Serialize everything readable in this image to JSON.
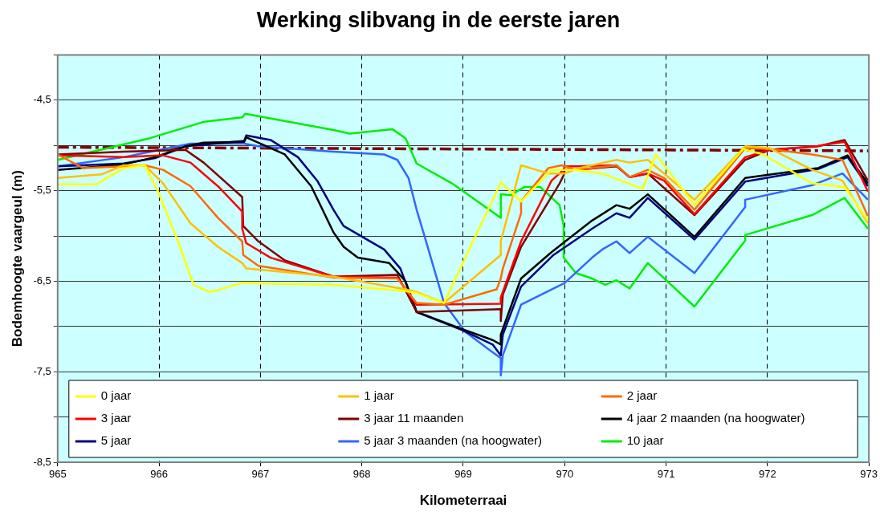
{
  "chart_data": {
    "type": "line",
    "title": "Werking slibvang in de eerste jaren",
    "xlabel": "Kilometerraai",
    "ylabel": "Bodemhoogte vaargeul (m)",
    "xlim": [
      965,
      973
    ],
    "xticks": [
      965,
      966,
      967,
      968,
      969,
      970,
      971,
      972,
      973
    ],
    "ylim": [
      -8.5,
      -4.0
    ],
    "yticks": [
      {
        "value": -8.5,
        "label": "-8,5"
      },
      {
        "value": -8,
        "label": null
      },
      {
        "value": -7.5,
        "label": "-7,5"
      },
      {
        "value": -7,
        "label": null
      },
      {
        "value": -6.5,
        "label": "-6,5"
      },
      {
        "value": -6,
        "label": null
      },
      {
        "value": -5.5,
        "label": "-5,5"
      },
      {
        "value": -5,
        "label": null
      },
      {
        "value": -4.5,
        "label": "-4,5"
      },
      {
        "value": -4,
        "label": null
      }
    ],
    "grid": true,
    "legend": "bottom",
    "marker": "none",
    "line_style": "solid",
    "series": [
      {
        "name": "0 jaar",
        "color": "#ffff00",
        "x": [
          965,
          965.38,
          965.65,
          965.86,
          965.99,
          966.18,
          966.34,
          966.5,
          966.82,
          967.72,
          968.43,
          968.54,
          968.81,
          969.37,
          969.47,
          969.57,
          969.87,
          970.1,
          970.37,
          970.77,
          970.9,
          971.28,
          971.76,
          971.96,
          972.44,
          972.76,
          972.99
        ],
        "values": [
          -5.43,
          -5.43,
          -5.25,
          -5.22,
          -5.51,
          -6.04,
          -6.54,
          -6.62,
          -6.52,
          -6.54,
          -6.61,
          -6.63,
          -6.74,
          -5.41,
          -5.51,
          -5.62,
          -5.27,
          -5.27,
          -5.31,
          -5.48,
          -5.1,
          -5.66,
          -5.04,
          -5.1,
          -5.42,
          -5.46,
          -5.83
        ]
      },
      {
        "name": "1 jaar",
        "color": "#ffc000",
        "x": [
          965,
          965.43,
          965.65,
          965.86,
          966.04,
          966.31,
          966.58,
          966.82,
          966.86,
          967.72,
          968.43,
          968.54,
          968.81,
          969.37,
          969.37,
          969.57,
          969.84,
          970.0,
          970.11,
          970.51,
          970.64,
          970.82,
          970.98,
          971.28,
          971.78,
          972.02,
          972.44,
          972.74,
          972.99
        ],
        "values": [
          -5.36,
          -5.32,
          -5.22,
          -5.22,
          -5.42,
          -5.86,
          -6.12,
          -6.3,
          -6.36,
          -6.45,
          -6.59,
          -6.62,
          -6.74,
          -6.21,
          -6.06,
          -5.22,
          -5.31,
          -5.31,
          -5.26,
          -5.16,
          -5.19,
          -5.16,
          -5.31,
          -5.6,
          -5.01,
          -5.03,
          -5.27,
          -5.39,
          -5.86
        ]
      },
      {
        "name": "2 jaar",
        "color": "#ff6a00",
        "x": [
          965,
          965.25,
          965.86,
          966.04,
          966.31,
          966.58,
          966.82,
          966.83,
          966.98,
          967.72,
          968.35,
          968.54,
          968.81,
          969.33,
          969.37,
          969.39,
          969.57,
          969.57,
          969.84,
          969.97,
          970.11,
          970.51,
          970.64,
          970.82,
          970.98,
          971.28,
          971.78,
          972.02,
          972.44,
          972.74,
          972.99
        ],
        "values": [
          -5.1,
          -5.25,
          -5.22,
          -5.27,
          -5.45,
          -5.8,
          -6.06,
          -6.21,
          -6.33,
          -6.46,
          -6.47,
          -6.74,
          -6.76,
          -6.59,
          -6.47,
          -6.36,
          -5.75,
          -5.62,
          -5.25,
          -5.22,
          -5.27,
          -5.22,
          -5.35,
          -5.27,
          -5.36,
          -5.71,
          -5.03,
          -5.04,
          -5.1,
          -5.16,
          -5.78
        ]
      },
      {
        "name": "3 jaar",
        "color": "#ff0000",
        "x": [
          965,
          965.65,
          966.04,
          966.31,
          966.58,
          966.82,
          966.82,
          966.86,
          967.1,
          967.72,
          968.35,
          968.54,
          969.37,
          969.37,
          969.57,
          969.87,
          969.99,
          970.0,
          970.11,
          970.51,
          970.64,
          970.82,
          970.98,
          971.28,
          971.78,
          972.02,
          972.47,
          972.76,
          972.99
        ],
        "values": [
          -5.11,
          -5.13,
          -5.11,
          -5.19,
          -5.45,
          -5.73,
          -5.92,
          -6.08,
          -6.24,
          -6.45,
          -6.46,
          -6.76,
          -6.75,
          -6.68,
          -6.06,
          -5.39,
          -5.27,
          -5.23,
          -5.23,
          -5.22,
          -5.35,
          -5.31,
          -5.39,
          -5.76,
          -5.13,
          -5.05,
          -5.01,
          -4.96,
          -5.51
        ]
      },
      {
        "name": "3 jaar 11 maanden",
        "color": "#800000",
        "x": [
          965,
          965.65,
          966.26,
          966.44,
          966.82,
          966.83,
          966.98,
          967.24,
          967.72,
          968.35,
          968.54,
          969.37,
          969.37,
          969.39,
          969.57,
          969.95,
          969.99,
          970.0,
          970.11,
          970.51,
          970.64,
          970.82,
          971.28,
          971.78,
          972.02,
          972.5,
          972.76,
          972.99
        ],
        "values": [
          -5.1,
          -5.07,
          -5.05,
          -5.19,
          -5.57,
          -5.89,
          -6.06,
          -6.27,
          -6.45,
          -6.43,
          -6.84,
          -6.81,
          -6.94,
          -6.65,
          -6.12,
          -5.42,
          -5.33,
          -5.27,
          -5.27,
          -5.23,
          -5.35,
          -5.31,
          -5.77,
          -5.16,
          -5.05,
          -5.01,
          -4.94,
          -5.39
        ]
      },
      {
        "name": "4 jaar 2 maanden (na hoogwater)",
        "color": "#000000",
        "x": [
          965,
          965.65,
          965.96,
          966.26,
          966.44,
          966.84,
          966.86,
          967.24,
          967.5,
          967.72,
          967.82,
          967.96,
          968.27,
          968.43,
          968.54,
          968.99,
          969.29,
          969.37,
          969.37,
          969.57,
          969.87,
          970.27,
          970.51,
          970.64,
          970.82,
          971.28,
          971.78,
          972.5,
          972.79,
          972.99
        ],
        "values": [
          -5.27,
          -5.21,
          -5.13,
          -5.01,
          -4.97,
          -4.96,
          -4.91,
          -5.1,
          -5.45,
          -5.96,
          -6.12,
          -6.24,
          -6.3,
          -6.5,
          -6.84,
          -7.03,
          -7.15,
          -7.2,
          -7.09,
          -6.47,
          -6.18,
          -5.83,
          -5.66,
          -5.7,
          -5.54,
          -6.01,
          -5.36,
          -5.25,
          -5.11,
          -5.42
        ]
      },
      {
        "name": "5 jaar",
        "color": "#000080",
        "x": [
          965,
          965.65,
          965.96,
          966.26,
          966.84,
          966.86,
          967.1,
          967.37,
          967.56,
          967.72,
          967.82,
          968.22,
          968.38,
          968.54,
          968.99,
          969.29,
          969.37,
          969.39,
          969.57,
          969.89,
          970.27,
          970.51,
          970.64,
          970.82,
          971.28,
          971.78,
          972.5,
          972.79,
          972.99
        ],
        "values": [
          -5.23,
          -5.2,
          -5.14,
          -5.01,
          -4.95,
          -4.89,
          -4.94,
          -5.13,
          -5.39,
          -5.71,
          -5.89,
          -6.15,
          -6.36,
          -6.84,
          -7.04,
          -7.2,
          -7.32,
          -7.09,
          -6.56,
          -6.21,
          -5.92,
          -5.75,
          -5.8,
          -5.58,
          -6.04,
          -5.4,
          -5.26,
          -5.13,
          -5.45
        ]
      },
      {
        "name": "5 jaar 3 maanden (na hoogwater)",
        "color": "#3366ff",
        "x": [
          965,
          965.65,
          966.31,
          966.84,
          966.98,
          967.72,
          968.22,
          968.35,
          968.46,
          968.54,
          968.62,
          968.81,
          969.02,
          969.26,
          969.37,
          969.37,
          969.39,
          969.57,
          970.0,
          970.27,
          970.37,
          970.51,
          970.64,
          970.82,
          971.28,
          971.78,
          971.78,
          972.44,
          972.74,
          972.99
        ],
        "values": [
          -5.23,
          -5.13,
          -4.98,
          -4.98,
          -5.01,
          -5.07,
          -5.1,
          -5.16,
          -5.36,
          -5.71,
          -6.01,
          -6.74,
          -7.06,
          -7.26,
          -7.35,
          -7.54,
          -7.32,
          -6.76,
          -6.52,
          -6.24,
          -6.15,
          -6.06,
          -6.19,
          -6.01,
          -6.41,
          -5.68,
          -5.6,
          -5.44,
          -5.31,
          -5.6
        ]
      },
      {
        "name": "10 jaar",
        "color": "#00ee00",
        "x": [
          965,
          965.91,
          966.44,
          966.82,
          966.85,
          967.72,
          967.88,
          968.3,
          968.43,
          968.54,
          968.89,
          969.37,
          969.37,
          969.47,
          969.6,
          969.76,
          969.95,
          969.99,
          969.99,
          970.11,
          970.27,
          970.4,
          970.51,
          970.64,
          970.82,
          971.28,
          971.78,
          971.78,
          972.44,
          972.76,
          972.99
        ],
        "values": [
          -5.16,
          -4.92,
          -4.74,
          -4.69,
          -4.65,
          -4.83,
          -4.87,
          -4.82,
          -4.92,
          -5.2,
          -5.42,
          -5.8,
          -5.54,
          -5.55,
          -5.46,
          -5.46,
          -5.66,
          -5.89,
          -6.24,
          -6.41,
          -6.47,
          -6.54,
          -6.49,
          -6.58,
          -6.3,
          -6.78,
          -6.05,
          -5.99,
          -5.77,
          -5.58,
          -5.92
        ]
      },
      {
        "color": "#800000",
        "line_style": "dashed",
        "x": [
          965,
          973
        ],
        "values": [
          -5.02,
          -5.06
        ]
      }
    ]
  }
}
